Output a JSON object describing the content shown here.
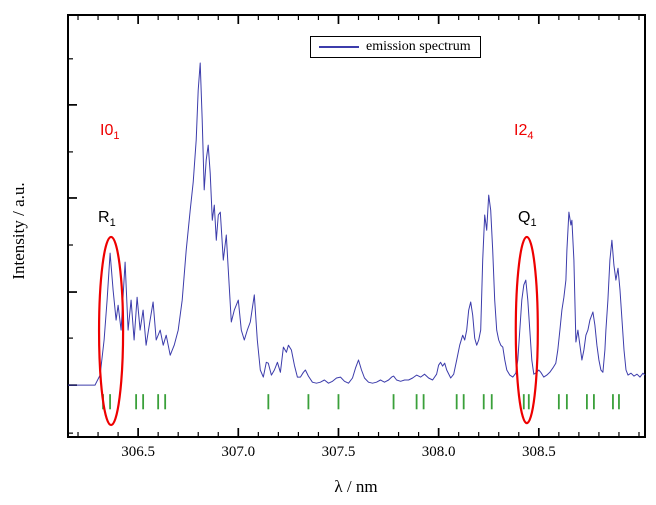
{
  "figure": {
    "background": "#ffffff"
  },
  "legend": {
    "label": "emission spectrum",
    "line_color": "#3c3cab"
  },
  "axes": {
    "x_title": "λ / nm",
    "y_title": "Intensity / a.u.",
    "x_tick_labels": [
      "306.5",
      "307.0",
      "307.5",
      "308.0",
      "308.5"
    ]
  },
  "annotations": {
    "band_left": {
      "base": "I0",
      "sub": "1",
      "color": "#ee0000"
    },
    "band_right": {
      "base": "I2",
      "sub": "4",
      "color": "#ee0000"
    },
    "line_left": {
      "base": "R",
      "sub": "1",
      "color": "#000000"
    },
    "line_right": {
      "base": "Q",
      "sub": "1",
      "color": "#000000"
    }
  },
  "chart_data": {
    "type": "line",
    "title": "",
    "xlabel": "λ / nm",
    "ylabel": "Intensity / a.u.",
    "xlim": [
      306.15,
      309.03
    ],
    "ylim": [
      -0.161,
      1.149
    ],
    "grid": false,
    "legend_position": "top-center",
    "x_major_ticks": [
      306.5,
      307.0,
      307.5,
      308.0,
      308.5
    ],
    "x_minor_tick_step": 0.1,
    "x_minor_tick_range": [
      306.2,
      309.0
    ],
    "y_major_ticks": [
      0,
      0.289,
      0.581,
      0.87
    ],
    "y_minor_ticks": [
      -0.149,
      0.146,
      0.435,
      0.724,
      1.013
    ],
    "series": [
      {
        "name": "emission spectrum",
        "color": "#3c3cab",
        "x": [
          306.15,
          306.25,
          306.285,
          306.31,
          306.33,
          306.345,
          306.36,
          306.375,
          306.39,
          306.4,
          306.415,
          306.435,
          306.45,
          306.465,
          306.48,
          306.495,
          306.51,
          306.525,
          306.54,
          306.56,
          306.575,
          306.59,
          306.61,
          306.625,
          306.64,
          306.66,
          306.68,
          306.7,
          306.72,
          306.74,
          306.76,
          306.775,
          306.79,
          306.8,
          306.81,
          306.82,
          306.83,
          306.84,
          306.85,
          306.86,
          306.87,
          306.88,
          306.89,
          306.9,
          306.91,
          306.925,
          306.94,
          306.95,
          306.965,
          306.98,
          307.0,
          307.015,
          307.03,
          307.045,
          307.06,
          307.08,
          307.095,
          307.11,
          307.125,
          307.14,
          307.15,
          307.165,
          307.18,
          307.195,
          307.21,
          307.225,
          307.24,
          307.25,
          307.265,
          307.28,
          307.295,
          307.31,
          307.325,
          307.335,
          307.35,
          307.37,
          307.39,
          307.41,
          307.43,
          307.45,
          307.47,
          307.49,
          307.51,
          307.53,
          307.55,
          307.57,
          307.585,
          307.6,
          307.615,
          307.63,
          307.65,
          307.67,
          307.69,
          307.71,
          307.73,
          307.75,
          307.765,
          307.775,
          307.79,
          307.81,
          307.83,
          307.85,
          307.87,
          307.89,
          307.91,
          307.93,
          307.95,
          307.97,
          307.99,
          308.0,
          308.01,
          308.02,
          308.03,
          308.04,
          308.06,
          308.075,
          308.09,
          308.105,
          308.12,
          308.13,
          308.14,
          308.15,
          308.16,
          308.17,
          308.18,
          308.19,
          308.2,
          308.21,
          308.22,
          308.23,
          308.24,
          308.25,
          308.26,
          308.27,
          308.28,
          308.29,
          308.3,
          308.31,
          308.32,
          308.33,
          308.34,
          308.355,
          308.37,
          308.385,
          308.395,
          308.405,
          308.415,
          308.425,
          308.435,
          308.445,
          308.455,
          308.465,
          308.475,
          308.49,
          308.5,
          308.51,
          308.525,
          308.54,
          308.555,
          308.57,
          308.585,
          308.595,
          308.605,
          308.615,
          308.625,
          308.635,
          308.64,
          308.65,
          308.66,
          308.665,
          308.675,
          308.685,
          308.695,
          308.705,
          308.715,
          308.725,
          308.735,
          308.745,
          308.755,
          308.77,
          308.78,
          308.79,
          308.8,
          308.81,
          308.82,
          308.83,
          308.835,
          308.845,
          308.855,
          308.865,
          308.875,
          308.885,
          308.895,
          308.905,
          308.915,
          308.925,
          308.935,
          308.945,
          308.96,
          308.975,
          308.99,
          309.005,
          309.02,
          309.03
        ],
        "y": [
          0.0,
          0.0,
          0.0,
          0.031,
          0.14,
          0.264,
          0.41,
          0.295,
          0.202,
          0.248,
          0.171,
          0.382,
          0.171,
          0.264,
          0.14,
          0.273,
          0.171,
          0.233,
          0.124,
          0.202,
          0.258,
          0.14,
          0.171,
          0.124,
          0.155,
          0.093,
          0.124,
          0.171,
          0.264,
          0.419,
          0.543,
          0.63,
          0.761,
          0.916,
          1.0,
          0.823,
          0.606,
          0.699,
          0.745,
          0.658,
          0.512,
          0.559,
          0.45,
          0.528,
          0.537,
          0.388,
          0.466,
          0.357,
          0.196,
          0.233,
          0.264,
          0.171,
          0.14,
          0.171,
          0.196,
          0.28,
          0.14,
          0.047,
          0.025,
          0.071,
          0.068,
          0.031,
          0.047,
          0.071,
          0.04,
          0.118,
          0.102,
          0.124,
          0.109,
          0.062,
          0.025,
          0.025,
          0.04,
          0.047,
          0.028,
          0.009,
          0.006,
          0.009,
          0.016,
          0.006,
          0.012,
          0.022,
          0.025,
          0.012,
          0.006,
          0.022,
          0.053,
          0.078,
          0.047,
          0.022,
          0.009,
          0.006,
          0.009,
          0.016,
          0.009,
          0.016,
          0.025,
          0.028,
          0.016,
          0.012,
          0.016,
          0.016,
          0.022,
          0.031,
          0.025,
          0.034,
          0.022,
          0.016,
          0.034,
          0.062,
          0.071,
          0.059,
          0.068,
          0.047,
          0.022,
          0.034,
          0.078,
          0.124,
          0.155,
          0.14,
          0.171,
          0.233,
          0.258,
          0.217,
          0.146,
          0.124,
          0.14,
          0.171,
          0.388,
          0.528,
          0.481,
          0.59,
          0.543,
          0.419,
          0.264,
          0.171,
          0.14,
          0.124,
          0.118,
          0.078,
          0.047,
          0.031,
          0.025,
          0.037,
          0.078,
          0.171,
          0.264,
          0.311,
          0.326,
          0.264,
          0.171,
          0.078,
          0.034,
          0.04,
          0.047,
          0.04,
          0.025,
          0.031,
          0.04,
          0.053,
          0.068,
          0.109,
          0.171,
          0.233,
          0.273,
          0.326,
          0.419,
          0.537,
          0.497,
          0.512,
          0.388,
          0.134,
          0.171,
          0.124,
          0.078,
          0.109,
          0.155,
          0.171,
          0.202,
          0.227,
          0.186,
          0.124,
          0.078,
          0.047,
          0.04,
          0.109,
          0.171,
          0.264,
          0.388,
          0.45,
          0.373,
          0.326,
          0.363,
          0.295,
          0.202,
          0.109,
          0.047,
          0.031,
          0.037,
          0.028,
          0.034,
          0.025,
          0.037,
          0.031
        ]
      }
    ],
    "reference_lines": {
      "color": "#3aa03a",
      "y_span": [
        -0.075,
        -0.028
      ],
      "x": [
        306.325,
        306.36,
        306.49,
        306.525,
        306.6,
        306.635,
        307.15,
        307.35,
        307.5,
        307.775,
        307.89,
        307.925,
        308.09,
        308.125,
        308.225,
        308.265,
        308.425,
        308.45,
        308.6,
        308.64,
        308.74,
        308.775,
        308.87,
        308.9
      ]
    },
    "ellipses": [
      {
        "label": "R1",
        "cx": 306.365,
        "cy": 0.168,
        "rx": 0.06,
        "ry": 0.292,
        "color": "#ee0000"
      },
      {
        "label": "Q1",
        "cx": 308.44,
        "cy": 0.171,
        "rx": 0.055,
        "ry": 0.289,
        "color": "#ee0000"
      }
    ],
    "annotations": [
      {
        "text": "I0_1",
        "x": 306.38,
        "y": 0.77,
        "color": "#ee0000"
      },
      {
        "text": "I2_4",
        "x": 308.46,
        "y": 0.77,
        "color": "#ee0000"
      },
      {
        "text": "R_1",
        "x": 306.36,
        "y": 0.5,
        "color": "#000000"
      },
      {
        "text": "Q_1",
        "x": 308.45,
        "y": 0.5,
        "color": "#000000"
      }
    ]
  }
}
